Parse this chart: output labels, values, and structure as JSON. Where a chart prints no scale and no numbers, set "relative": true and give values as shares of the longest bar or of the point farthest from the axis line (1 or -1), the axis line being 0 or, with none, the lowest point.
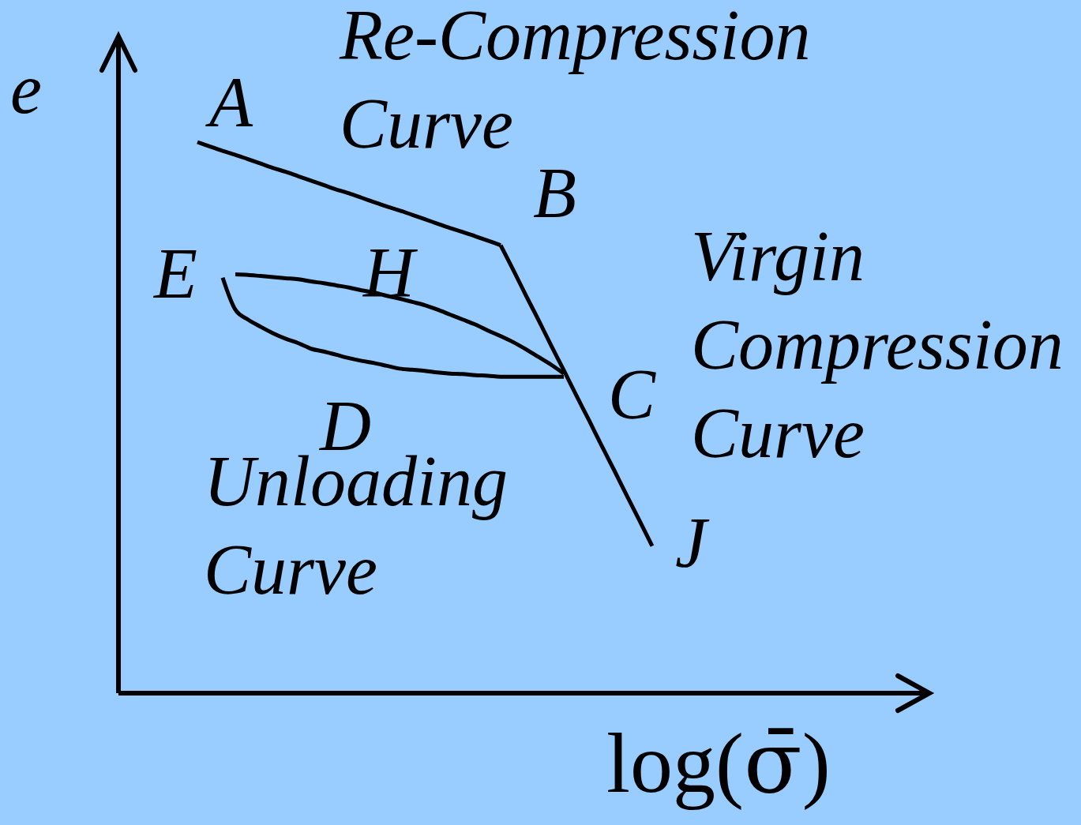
{
  "chart_data": {
    "type": "line",
    "relative": true,
    "tick_labels": false,
    "xlabel": "log(σ̄)",
    "ylabel": "e",
    "categories": [
      null,
      null,
      null,
      null,
      null,
      null,
      null,
      null,
      null,
      null,
      null,
      null,
      null,
      null,
      null,
      null,
      null,
      null,
      null,
      null,
      null,
      null,
      null,
      null,
      null,
      null,
      null,
      null,
      null,
      null,
      null,
      null,
      null,
      null,
      null,
      null,
      null
    ],
    "series": [
      {
        "color": "#000000",
        "values": [
          1,
          0.992,
          0.984,
          0.977,
          0.969,
          0.961,
          0.953,
          0.946,
          0.938,
          0.93,
          0.922,
          0.914,
          0.907,
          0.899,
          0.891,
          0.883,
          0.876,
          0.868,
          0.86,
          0.852,
          0.844,
          0.837,
          0.829,
          0.821,
          0.813,
          null,
          null,
          null,
          null,
          null,
          null,
          null,
          null,
          null,
          null,
          null,
          null
        ]
      },
      {
        "color": "#000000",
        "values": [
          null,
          null,
          null,
          null,
          null,
          null,
          null,
          null,
          null,
          null,
          null,
          null,
          null,
          null,
          null,
          null,
          null,
          null,
          null,
          null,
          null,
          null,
          null,
          null,
          0.813,
          0.768,
          0.722,
          0.677,
          0.631,
          0.586,
          0.54,
          0.495,
          0.449,
          0.404,
          0.358,
          0.313,
          0.267
        ]
      },
      {
        "color": "#000000",
        "values": [
          null,
          null,
          null,
          0.76,
          0.759,
          0.757,
          0.755,
          0.753,
          0.751,
          0.747,
          0.744,
          0.74,
          0.736,
          0.731,
          0.727,
          0.721,
          0.716,
          0.71,
          0.704,
          0.696,
          0.687,
          0.678,
          0.669,
          0.658,
          0.648,
          0.637,
          0.624,
          0.61,
          0.596,
          0.58,
          null,
          null,
          null,
          null,
          null,
          null,
          null
        ]
      },
      {
        "color": "#000000",
        "values": [
          null,
          null,
          0.754,
          0.696,
          0.678,
          0.665,
          0.653,
          0.643,
          0.635,
          0.625,
          0.62,
          0.614,
          0.608,
          0.603,
          0.599,
          0.594,
          0.589,
          0.587,
          0.585,
          0.582,
          0.58,
          0.579,
          0.577,
          0.576,
          0.574,
          0.574,
          0.574,
          0.574,
          0.574,
          0.574,
          null,
          null,
          null,
          null,
          null,
          null,
          null
        ]
      }
    ],
    "annotations": [
      "Re-Compression Curve",
      "A",
      "B",
      "Virgin Compression Curve",
      "E",
      "H",
      "C",
      "D",
      "Unloading Curve",
      "J"
    ]
  }
}
